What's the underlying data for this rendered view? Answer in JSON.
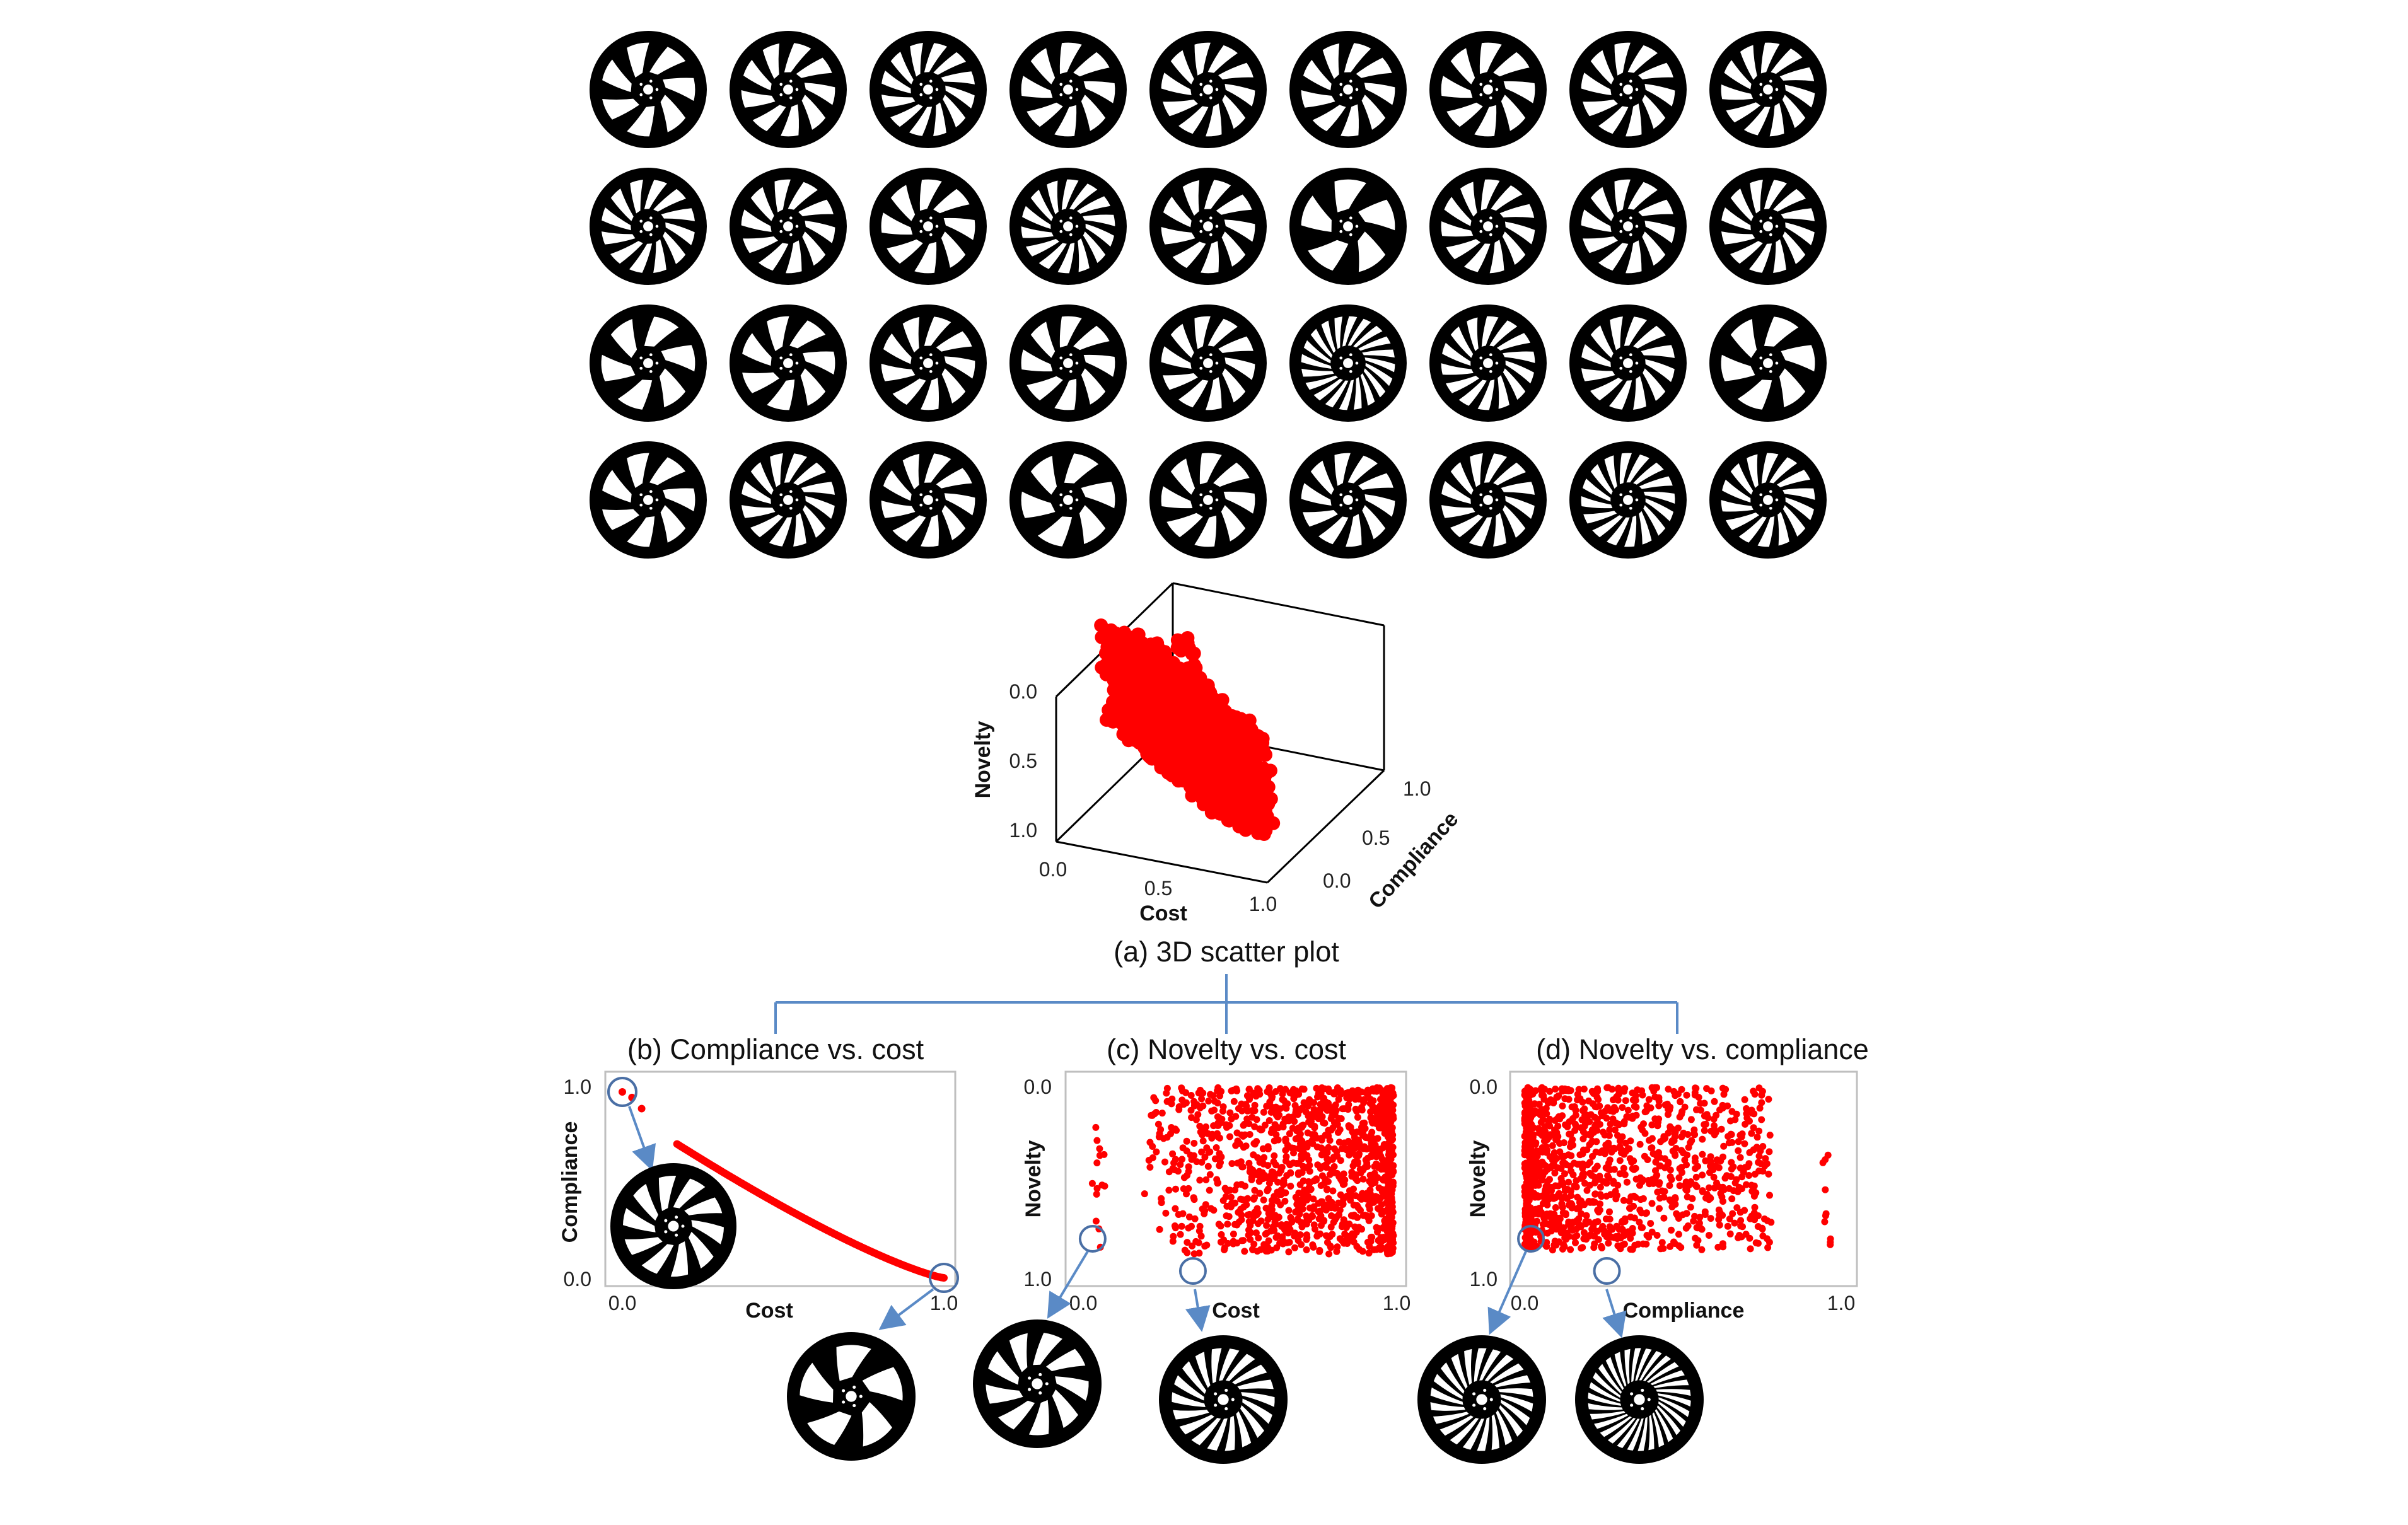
{
  "wheel_grid": {
    "rows": 4,
    "cols": 9,
    "spokes": [
      [
        7,
        9,
        12,
        8,
        10,
        9,
        8,
        10,
        11
      ],
      [
        12,
        10,
        8,
        14,
        9,
        5,
        11,
        10,
        12
      ],
      [
        6,
        7,
        9,
        8,
        10,
        20,
        14,
        12,
        6
      ],
      [
        7,
        12,
        9,
        6,
        8,
        10,
        12,
        16,
        14
      ]
    ]
  },
  "colors": {
    "marker": "#ff0000",
    "wheel": "#000000",
    "connector": "#5a8ac6",
    "highlight": "#4a6fa5",
    "axis": "#000000"
  },
  "chart_data": [
    {
      "id": "a",
      "type": "scatter",
      "projection": "3d",
      "caption": "(a) 3D scatter plot",
      "xlabel": "Cost",
      "ylabel": "Compliance",
      "zlabel": "Novelty",
      "x_ticks": [
        "0.0",
        "0.5",
        "1.0"
      ],
      "y_ticks": [
        "0.0",
        "0.5",
        "1.0"
      ],
      "z_ticks": [
        "0.0",
        "0.5",
        "1.0"
      ],
      "xlim": [
        0,
        1
      ],
      "ylim": [
        0,
        1
      ],
      "zlim": [
        1,
        0
      ],
      "n_points": 1500
    },
    {
      "id": "b",
      "type": "scatter",
      "caption": "(b) Compliance vs. cost",
      "xlabel": "Cost",
      "ylabel": "Compliance",
      "x_ticks": [
        "0.0",
        "1.0"
      ],
      "y_ticks": [
        "1.0",
        "0.0"
      ],
      "xlim": [
        0,
        1
      ],
      "ylim": [
        0,
        1
      ],
      "curve": {
        "x_start": 0.17,
        "x_end": 1.0,
        "y_start": 0.72,
        "y_end": 0.0,
        "n_points": 260
      },
      "outliers": [
        {
          "x": 0.0,
          "y": 1.0
        },
        {
          "x": 0.03,
          "y": 0.97
        },
        {
          "x": 0.06,
          "y": 0.91
        }
      ],
      "highlighted": [
        {
          "x": 0.0,
          "y": 1.0
        },
        {
          "x": 1.0,
          "y": 0.0
        }
      ]
    },
    {
      "id": "c",
      "type": "scatter",
      "caption": "(c) Novelty vs. cost",
      "xlabel": "Cost",
      "ylabel": "Novelty",
      "x_ticks": [
        "0.0",
        "1.0"
      ],
      "y_ticks": [
        "0.0",
        "1.0"
      ],
      "xlim": [
        0,
        1
      ],
      "ylim": [
        0,
        1
      ],
      "y_inverted": true,
      "n_points": 1300,
      "highlighted": [
        {
          "x": 0.03,
          "y": 0.8
        },
        {
          "x": 0.35,
          "y": 0.97
        }
      ]
    },
    {
      "id": "d",
      "type": "scatter",
      "caption": "(d) Novelty vs. compliance",
      "xlabel": "Compliance",
      "ylabel": "Novelty",
      "x_ticks": [
        "0.0",
        "1.0"
      ],
      "y_ticks": [
        "0.0",
        "1.0"
      ],
      "xlim": [
        0,
        1
      ],
      "ylim": [
        0,
        1
      ],
      "y_inverted": true,
      "n_points": 1300,
      "highlighted": [
        {
          "x": 0.02,
          "y": 0.8
        },
        {
          "x": 0.26,
          "y": 0.97
        }
      ]
    }
  ],
  "callout_wheels": {
    "b_top": 10,
    "b_bottom": 5,
    "c_left": 9,
    "c_right": 18,
    "d_left": 22,
    "d_right": 30
  }
}
